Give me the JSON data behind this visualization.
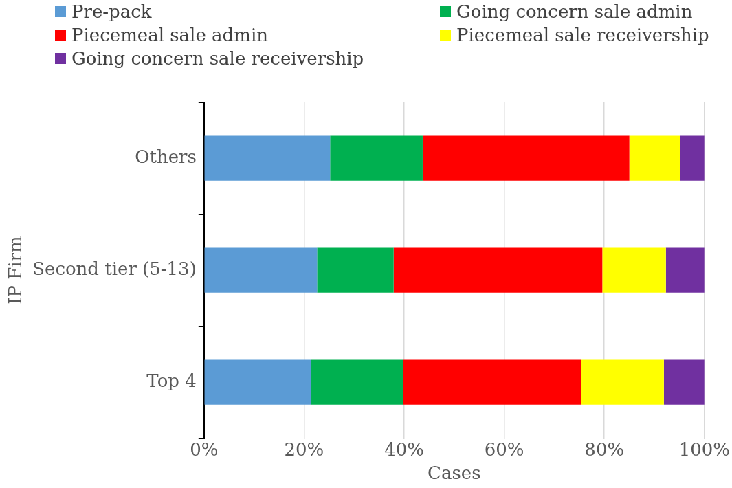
{
  "chart_data": {
    "type": "bar",
    "orientation": "horizontal",
    "stacked": true,
    "xlabel": "Cases",
    "ylabel": "IP Firm",
    "legend": "top",
    "grid": "x",
    "categories": [
      "Others",
      "Second tier (5-13)",
      "Top 4"
    ],
    "xlim": [
      0,
      100
    ],
    "xticks": [
      {
        "value": 0,
        "label": "0%"
      },
      {
        "value": 20,
        "label": "20%"
      },
      {
        "value": 40,
        "label": "40%"
      },
      {
        "value": 60,
        "label": "60%"
      },
      {
        "value": 80,
        "label": "80%"
      },
      {
        "value": 100,
        "label": "100%"
      }
    ],
    "series": [
      {
        "name": "Pre-pack",
        "color": "#5b9bd5",
        "values": [
          25.2,
          22.6,
          21.4
        ]
      },
      {
        "name": "Going concern sale admin",
        "color": "#00b050",
        "values": [
          18.5,
          15.3,
          18.4
        ]
      },
      {
        "name": "Piecemeal sale admin",
        "color": "#ff0000",
        "values": [
          41.3,
          41.7,
          35.6
        ]
      },
      {
        "name": "Piecemeal sale receivership",
        "color": "#ffff00",
        "values": [
          10.1,
          12.7,
          16.5
        ]
      },
      {
        "name": "Going concern sale receivership",
        "color": "#7030a0",
        "values": [
          4.9,
          7.7,
          8.1
        ]
      }
    ]
  }
}
